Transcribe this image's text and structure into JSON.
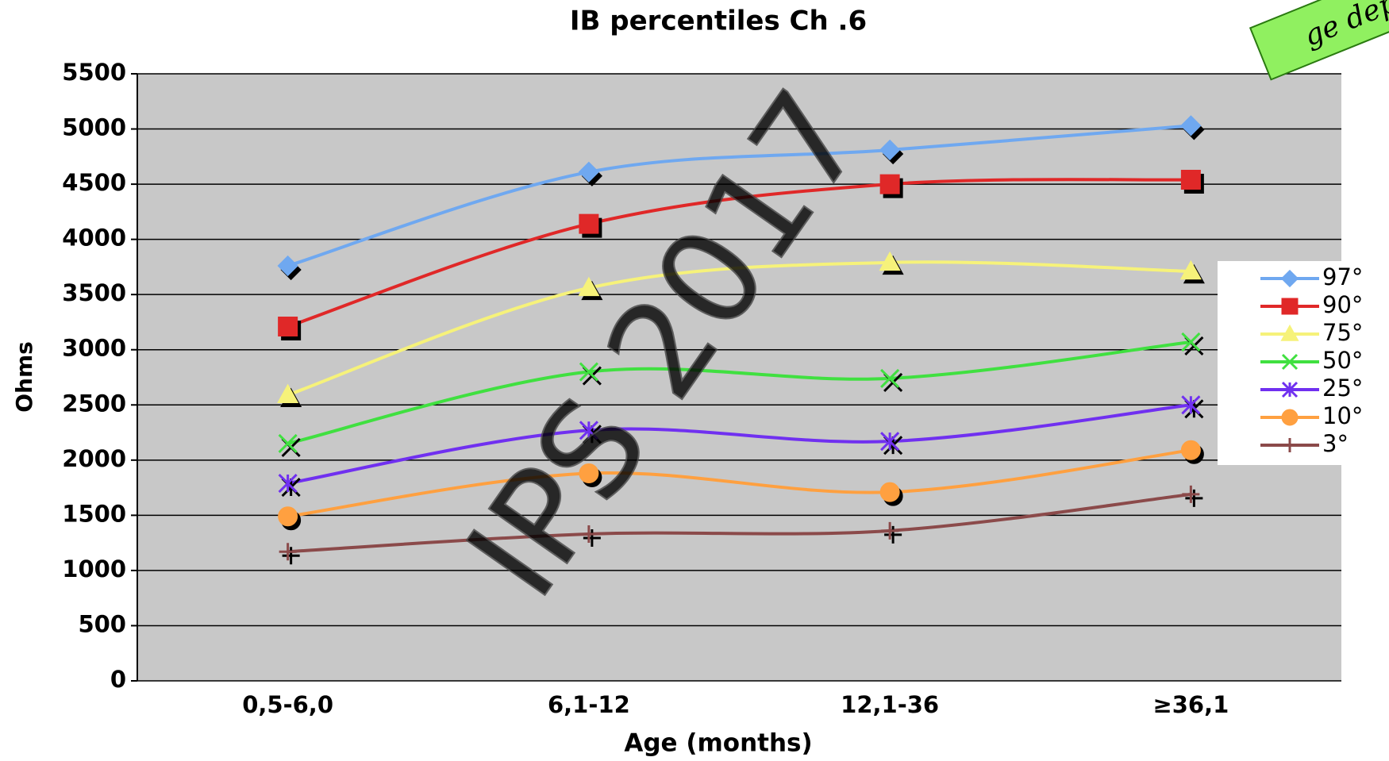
{
  "chart_data": {
    "type": "line",
    "title": "IB percentiles Ch .6",
    "x_label": "Age (months)",
    "y_label": "Ohms",
    "watermark": "IPS 2017",
    "corner_label": "ge dep",
    "categories": [
      "0,5-6,0",
      "6,1-12",
      "12,1-36",
      "≥36,1"
    ],
    "series": [
      {
        "name": "97°",
        "color": "#6fa8f0",
        "marker": "diamond",
        "values": [
          3760,
          4610,
          4810,
          5030
        ]
      },
      {
        "name": "90°",
        "color": "#e02828",
        "marker": "square",
        "values": [
          3210,
          4140,
          4500,
          4540
        ]
      },
      {
        "name": "75°",
        "color": "#f6f27a",
        "marker": "triangle",
        "values": [
          2590,
          3560,
          3790,
          3710
        ]
      },
      {
        "name": "50°",
        "color": "#40e040",
        "marker": "x",
        "values": [
          2150,
          2800,
          2740,
          3070
        ]
      },
      {
        "name": "25°",
        "color": "#7030f0",
        "marker": "asterisk",
        "values": [
          1790,
          2270,
          2170,
          2500
        ]
      },
      {
        "name": "10°",
        "color": "#ffa040",
        "marker": "circle",
        "values": [
          1490,
          1880,
          1710,
          2090
        ]
      },
      {
        "name": "3°",
        "color": "#8b4a4a",
        "marker": "plus",
        "values": [
          1170,
          1330,
          1360,
          1690
        ]
      }
    ],
    "ylim": [
      0,
      5500
    ],
    "yticks": [
      0,
      500,
      1000,
      1500,
      2000,
      2500,
      3000,
      3500,
      4000,
      4500,
      5000,
      5500
    ],
    "grid": true,
    "legend": "right"
  }
}
